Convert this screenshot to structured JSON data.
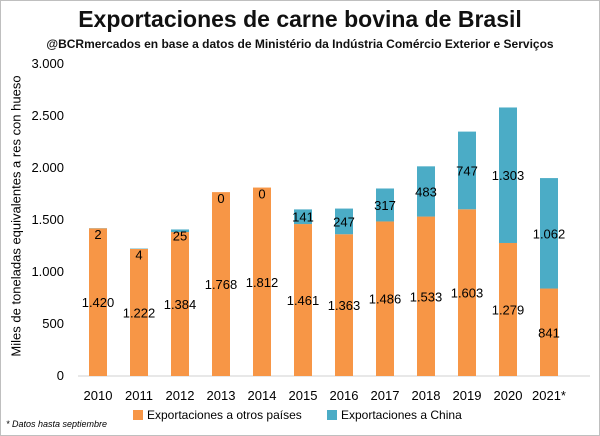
{
  "chart_data": {
    "type": "bar",
    "stacked": true,
    "title": "Exportaciones de carne bovina de Brasil",
    "subtitle": "@BCRmercados en base a datos de Ministério da Indústria Comércio Exterior e Serviços",
    "ylabel": "Miles de toneladas equivalentes a res con hueso",
    "xlabel": "",
    "categories": [
      "2010",
      "2011",
      "2012",
      "2013",
      "2014",
      "2015",
      "2016",
      "2017",
      "2018",
      "2019",
      "2020",
      "2021*"
    ],
    "ylim": [
      0,
      3000
    ],
    "yticks": [
      0,
      500,
      1000,
      1500,
      2000,
      2500,
      3000
    ],
    "ytick_labels": [
      "0",
      "500",
      "1.000",
      "1.500",
      "2.000",
      "2.500",
      "3.000"
    ],
    "grid": false,
    "legend_position": "bottom",
    "series": [
      {
        "name": "Exportaciones a otros países",
        "color": "#f79646",
        "values": [
          1420,
          1222,
          1384,
          1768,
          1812,
          1461,
          1363,
          1486,
          1533,
          1603,
          1279,
          841
        ],
        "labels": [
          "1.420",
          "1.222",
          "1.384",
          "1.768",
          "1.812",
          "1.461",
          "1.363",
          "1.486",
          "1.533",
          "1.603",
          "1.279",
          "841"
        ]
      },
      {
        "name": "Exportaciones a China",
        "color": "#4bacc6",
        "values": [
          2,
          4,
          25,
          0,
          0,
          141,
          247,
          317,
          483,
          747,
          1303,
          1062
        ],
        "labels": [
          "2",
          "4",
          "25",
          "0",
          "0",
          "141",
          "247",
          "317",
          "483",
          "747",
          "1.303",
          "1.062"
        ]
      }
    ],
    "footnote": "* Datos hasta septiembre"
  }
}
